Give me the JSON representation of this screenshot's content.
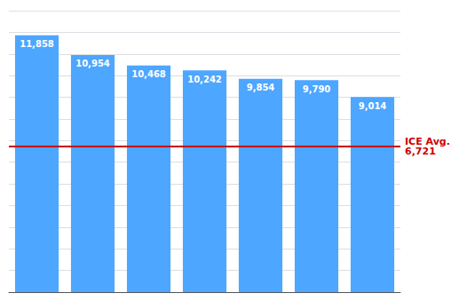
{
  "chart_data": {
    "type": "bar",
    "categories": [
      null,
      null,
      null,
      null,
      null,
      null,
      null
    ],
    "values": [
      11858,
      10954,
      10468,
      10242,
      9854,
      9790,
      9014
    ],
    "value_labels": [
      "11,858",
      "10,954",
      "10,468",
      "10,242",
      "9,854",
      "9,790",
      "9,014"
    ],
    "color": "#4DA6FF",
    "data_labels": true,
    "ylim": [
      0,
      13000
    ],
    "yticks": [
      0,
      1000,
      2000,
      3000,
      4000,
      5000,
      6000,
      7000,
      8000,
      9000,
      10000,
      11000,
      12000,
      13000
    ],
    "tick_labels": false,
    "grid": true,
    "hlines": [
      {
        "value": 6721,
        "label": "ICE Avg.\n6,721",
        "color": "#CC0000"
      }
    ]
  }
}
